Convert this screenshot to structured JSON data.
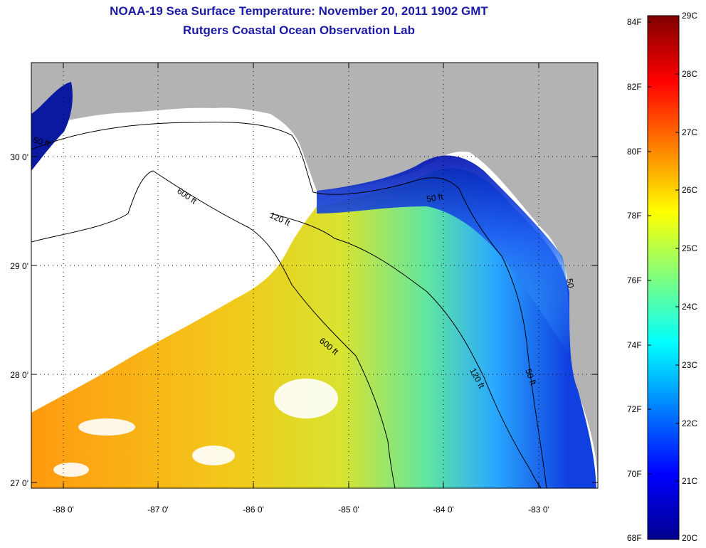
{
  "title_line1": "NOAA-19 Sea Surface Temperature:  November 20, 2011 1902 GMT",
  "title_line2": "Rutgers Coastal Ocean Observation Lab",
  "lat_labels": [
    "30 0'",
    "29 0'",
    "28 0'",
    "27 0'"
  ],
  "lon_labels": [
    "-88 0'",
    "-87 0'",
    "-86 0'",
    "-85 0'",
    "-84 0'",
    "-83 0'"
  ],
  "contour_labels": [
    "50 ft",
    "600 ft",
    "120 ft",
    "50 ft",
    "600 ft",
    "120 ft",
    "50 ft",
    "50"
  ],
  "colorbar": {
    "fahrenheit_labels": [
      "84F",
      "82F",
      "80F",
      "78F",
      "76F",
      "74F",
      "72F",
      "70F",
      "68F"
    ],
    "celsius_labels": [
      "29C",
      "28C",
      "27C",
      "26C",
      "25C",
      "24C",
      "23C",
      "22C",
      "21C",
      "20C"
    ]
  },
  "colors": {
    "title": "#1a1aa6",
    "land": "#b3b3b3",
    "no_data": "#ffffff",
    "sst_cold": "#00008f",
    "sst_hot": "#800000"
  }
}
